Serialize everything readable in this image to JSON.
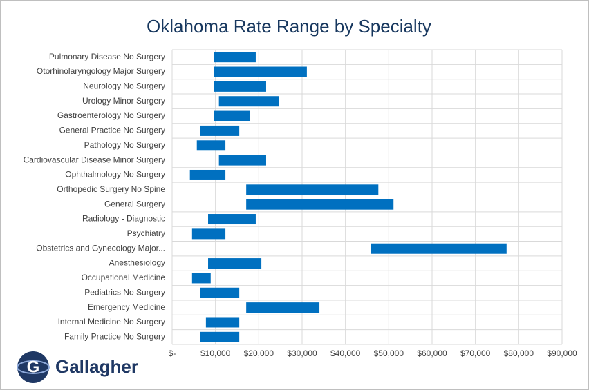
{
  "chart_data": {
    "type": "floating-bar",
    "title": "Oklahoma Rate Range by Specialty",
    "categories": [
      "Pulmonary Disease No Surgery",
      "Otorhinolaryngology Major Surgery",
      "Neurology No Surgery",
      "Urology Minor Surgery",
      "Gastroenterology No Surgery",
      "General Practice No Surgery",
      "Pathology No Surgery",
      "Cardiovascular Disease Minor Surgery",
      "Ophthalmology No Surgery",
      "Orthopedic Surgery No Spine",
      "General Surgery",
      "Radiology - Diagnostic",
      "Psychiatry",
      "Obstetrics and Gynecology Major...",
      "Anesthesiology",
      "Occupational Medicine",
      "Pediatrics No Surgery",
      "Emergency Medicine",
      "Internal Medicine No Surgery",
      "Family Practice No Surgery"
    ],
    "low": [
      9700,
      9700,
      9700,
      10800,
      9700,
      6500,
      5700,
      10800,
      4100,
      17100,
      17100,
      8300,
      4600,
      45800,
      8300,
      4600,
      6500,
      17100,
      7800,
      6500
    ],
    "high": [
      19300,
      31100,
      21700,
      24700,
      17900,
      15500,
      12300,
      21700,
      12300,
      47600,
      51100,
      19300,
      12300,
      77200,
      20600,
      8900,
      15500,
      34000,
      15500,
      15500
    ],
    "color": "#0070c0",
    "xlim": [
      0,
      90000
    ],
    "xticks": [
      {
        "value": 0,
        "label": "$-"
      },
      {
        "value": 10000,
        "label": "$10,000"
      },
      {
        "value": 20000,
        "label": "$20,000"
      },
      {
        "value": 30000,
        "label": "$30,000"
      },
      {
        "value": 40000,
        "label": "$40,000"
      },
      {
        "value": 50000,
        "label": "$50,000"
      },
      {
        "value": 60000,
        "label": "$60,000"
      },
      {
        "value": 70000,
        "label": "$70,000"
      },
      {
        "value": 80000,
        "label": "$80,000"
      },
      {
        "value": 90000,
        "label": "$90,000"
      }
    ],
    "grid": true
  },
  "logo": {
    "text": "Gallagher"
  }
}
